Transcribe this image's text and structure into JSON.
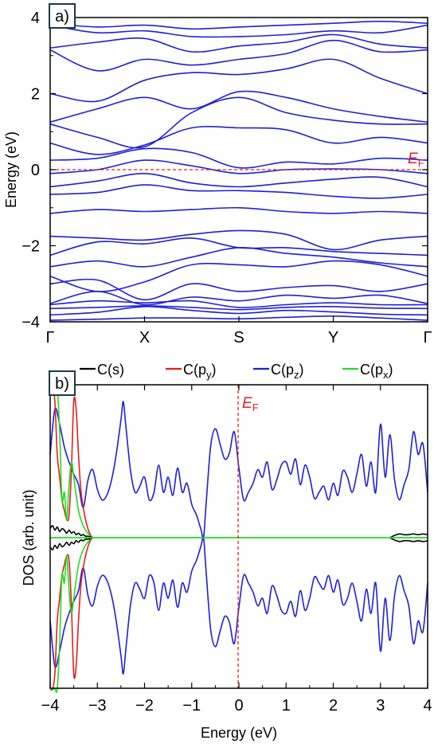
{
  "chart_data": [
    {
      "type": "line",
      "panel_tag": "a)",
      "xlabel": "",
      "ylabel": "Energy (eV)",
      "ylim": [
        -4,
        4
      ],
      "x_ticks": [
        "Γ",
        "X",
        "S",
        "Y",
        "Γ"
      ],
      "y_ticks": [
        -4,
        -2,
        0,
        2,
        4
      ],
      "fermi_line": {
        "y": 0,
        "label": "E",
        "label_sub": "F",
        "color": "#e3201b",
        "style": "dashed"
      },
      "series_color": "#1f1fd6",
      "x_positions": [
        0,
        0.5,
        1,
        1.5,
        2,
        2.5,
        3,
        3.5,
        4
      ],
      "series": [
        {
          "values": [
            -3.96,
            -3.93,
            -3.9,
            -3.9,
            -3.92,
            -3.88,
            -3.85,
            -3.9,
            -3.96
          ]
        },
        {
          "values": [
            -3.82,
            -3.75,
            -3.6,
            -3.7,
            -3.78,
            -3.7,
            -3.74,
            -3.8,
            -3.82
          ]
        },
        {
          "values": [
            -3.65,
            -3.62,
            -3.58,
            -3.62,
            -3.68,
            -3.62,
            -3.6,
            -3.64,
            -3.65
          ]
        },
        {
          "values": [
            -3.55,
            -3.45,
            -3.5,
            -3.45,
            -3.62,
            -3.55,
            -3.5,
            -3.55,
            -3.55
          ]
        },
        {
          "values": [
            -3.52,
            -3.2,
            -3.55,
            -3.35,
            -3.45,
            -3.3,
            -3.38,
            -3.3,
            -3.52
          ]
        },
        {
          "values": [
            -3.0,
            -2.9,
            -3.42,
            -3.0,
            -3.2,
            -3.1,
            -3.05,
            -3.2,
            -3.0
          ]
        },
        {
          "values": [
            -2.8,
            -3.2,
            -2.95,
            -2.5,
            -2.5,
            -2.55,
            -2.4,
            -2.5,
            -2.8
          ]
        },
        {
          "values": [
            -2.55,
            -2.4,
            -2.55,
            -2.3,
            -2.05,
            -2.2,
            -2.3,
            -2.45,
            -2.55
          ]
        },
        {
          "values": [
            -2.25,
            -1.9,
            -1.95,
            -1.8,
            -2.05,
            -2.05,
            -2.15,
            -2.2,
            -2.25
          ]
        },
        {
          "values": [
            -1.75,
            -1.8,
            -1.85,
            -1.7,
            -1.6,
            -1.7,
            -2.1,
            -1.85,
            -1.75
          ]
        },
        {
          "values": [
            -1.15,
            -1.05,
            -1.1,
            -1.05,
            -1.0,
            -1.1,
            -1.15,
            -1.1,
            -1.15
          ]
        },
        {
          "values": [
            -0.65,
            -0.6,
            -0.4,
            -0.55,
            -0.55,
            -0.6,
            -0.7,
            -0.75,
            -0.65
          ]
        },
        {
          "values": [
            -0.45,
            -0.3,
            -0.1,
            -0.35,
            -0.45,
            -0.35,
            -0.25,
            -0.2,
            -0.45
          ]
        },
        {
          "values": [
            -0.1,
            0.0,
            0.25,
            0.1,
            -0.1,
            0.0,
            0.02,
            0.0,
            -0.1
          ]
        },
        {
          "values": [
            0.25,
            0.3,
            0.55,
            0.45,
            0.05,
            0.2,
            0.15,
            0.3,
            0.25
          ]
        },
        {
          "values": [
            0.7,
            0.4,
            0.65,
            1.1,
            1.1,
            1.05,
            0.7,
            0.85,
            0.7
          ]
        },
        {
          "values": [
            1.2,
            0.85,
            0.6,
            1.5,
            1.9,
            1.5,
            1.3,
            1.2,
            1.2
          ]
        },
        {
          "values": [
            1.25,
            1.6,
            1.9,
            1.6,
            2.05,
            1.9,
            1.6,
            1.4,
            1.25
          ]
        },
        {
          "values": [
            2.0,
            1.8,
            2.35,
            2.55,
            2.5,
            2.65,
            2.9,
            2.4,
            2.0
          ]
        },
        {
          "values": [
            3.15,
            2.6,
            2.9,
            2.75,
            2.9,
            3.05,
            3.4,
            3.1,
            3.15
          ]
        },
        {
          "values": [
            3.2,
            3.35,
            3.45,
            3.1,
            3.25,
            3.35,
            3.55,
            3.3,
            3.2
          ]
        },
        {
          "values": [
            3.8,
            3.6,
            3.65,
            3.5,
            3.5,
            3.55,
            3.65,
            3.6,
            3.8
          ]
        },
        {
          "values": [
            3.85,
            3.75,
            3.8,
            3.7,
            3.75,
            3.8,
            3.85,
            3.9,
            3.85
          ]
        }
      ]
    },
    {
      "type": "line",
      "panel_tag": "b)",
      "xlabel": "Energy (eV)",
      "ylabel": "DOS (arb. unit)",
      "xlim": [
        -4,
        4
      ],
      "x_ticks": [
        -4,
        -3,
        -2,
        -1,
        0,
        1,
        2,
        3,
        4
      ],
      "fermi_line": {
        "x": 0,
        "label": "E",
        "label_sub": "F",
        "color": "#e3201b",
        "style": "dashed"
      },
      "legend": {
        "placement": "top",
        "entries": [
          {
            "label": "C(s)",
            "base": "C(s",
            "sub": "",
            "close": ")",
            "color": "#000000"
          },
          {
            "label": "C(py)",
            "base": "C(p",
            "sub": "y",
            "close": ")",
            "color": "#e3201b"
          },
          {
            "label": "C(pz)",
            "base": "C(p",
            "sub": "z",
            "close": ")",
            "color": "#1f1fd6"
          },
          {
            "label": "C(px)",
            "base": "C(p",
            "sub": "x",
            "close": ")",
            "color": "#22dd22"
          }
        ]
      },
      "series": [
        {
          "name": "C(pz)",
          "color": "#1f1fd6",
          "x": [
            -4,
            -3.9,
            -3.8,
            -3.7,
            -3.6,
            -3.5,
            -3.4,
            -3.3,
            -3.2,
            -3.1,
            -3.0,
            -2.9,
            -2.8,
            -2.7,
            -2.6,
            -2.5,
            -2.45,
            -2.4,
            -2.3,
            -2.2,
            -2.1,
            -2.0,
            -1.9,
            -1.8,
            -1.7,
            -1.6,
            -1.5,
            -1.4,
            -1.3,
            -1.2,
            -1.1,
            -1.0,
            -0.9,
            -0.8,
            -0.75,
            -0.7,
            -0.6,
            -0.5,
            -0.4,
            -0.3,
            -0.2,
            -0.1,
            0.0,
            0.1,
            0.2,
            0.3,
            0.4,
            0.5,
            0.6,
            0.7,
            0.8,
            0.9,
            1.0,
            1.1,
            1.2,
            1.3,
            1.4,
            1.5,
            1.6,
            1.7,
            1.8,
            1.9,
            2.0,
            2.1,
            2.2,
            2.3,
            2.4,
            2.5,
            2.6,
            2.7,
            2.8,
            2.9,
            3.0,
            3.1,
            3.2,
            3.3,
            3.4,
            3.5,
            3.6,
            3.7,
            3.8,
            3.9,
            4.0
          ],
          "values": [
            0.55,
            0.85,
            0.75,
            0.6,
            0.5,
            0.42,
            0.35,
            0.2,
            0.38,
            0.45,
            0.32,
            0.25,
            0.28,
            0.38,
            0.55,
            0.78,
            0.9,
            0.75,
            0.45,
            0.3,
            0.34,
            0.4,
            0.25,
            0.3,
            0.48,
            0.3,
            0.4,
            0.28,
            0.46,
            0.3,
            0.36,
            0.22,
            0.15,
            0.05,
            0.0,
            0.2,
            0.6,
            0.72,
            0.62,
            0.52,
            0.56,
            0.7,
            0.46,
            0.25,
            0.3,
            0.36,
            0.45,
            0.4,
            0.5,
            0.32,
            0.38,
            0.48,
            0.5,
            0.42,
            0.52,
            0.35,
            0.48,
            0.4,
            0.26,
            0.3,
            0.34,
            0.25,
            0.36,
            0.28,
            0.44,
            0.4,
            0.3,
            0.42,
            0.55,
            0.34,
            0.5,
            0.3,
            0.75,
            0.4,
            0.68,
            0.38,
            0.25,
            0.35,
            0.45,
            0.7,
            0.55,
            0.62,
            0.3
          ]
        },
        {
          "name": "C(py)",
          "color": "#e3201b",
          "x": [
            -4,
            -3.95,
            -3.9,
            -3.85,
            -3.8,
            -3.75,
            -3.7,
            -3.65,
            -3.6,
            -3.55,
            -3.5,
            -3.45,
            -3.4,
            -3.35,
            -3.3,
            -3.25,
            -3.2,
            -3.15,
            -3.1
          ],
          "values": [
            1.2,
            1.1,
            0.9,
            0.55,
            0.4,
            0.25,
            0.18,
            0.12,
            0.15,
            0.45,
            0.9,
            0.85,
            0.55,
            0.32,
            0.2,
            0.12,
            0.06,
            0.02,
            0.0
          ]
        },
        {
          "name": "C(px)",
          "color": "#22dd22",
          "x": [
            -4,
            -3.95,
            -3.9,
            -3.85,
            -3.8,
            -3.75,
            -3.7,
            -3.65,
            -3.6,
            -3.55,
            -3.5,
            -3.45,
            -3.4,
            -3.35,
            -3.3,
            -3.25,
            -3.2,
            -3.15,
            -3.1
          ],
          "values": [
            1.3,
            1.2,
            1.05,
            1.25,
            0.7,
            0.25,
            0.3,
            0.12,
            0.35,
            0.5,
            0.4,
            0.28,
            0.18,
            0.12,
            0.08,
            0.05,
            0.03,
            0.01,
            0.0
          ]
        },
        {
          "name": "C(s)",
          "color": "#000000",
          "x": [
            -4,
            -3.95,
            -3.9,
            -3.85,
            -3.8,
            -3.75,
            -3.7,
            -3.65,
            -3.6,
            -3.55,
            -3.5,
            -3.45,
            -3.4,
            -3.35,
            -3.3,
            -3.25,
            -3.2,
            -3.15,
            -3.1,
            3.2,
            3.3,
            3.4,
            3.5,
            3.6,
            3.7,
            3.8,
            3.9,
            4.0
          ],
          "values": [
            0.06,
            0.08,
            0.05,
            0.07,
            0.04,
            0.06,
            0.05,
            0.03,
            0.05,
            0.03,
            0.04,
            0.02,
            0.03,
            0.015,
            0.02,
            0.01,
            0.01,
            0.005,
            0.0,
            0.0,
            0.015,
            0.025,
            0.02,
            0.02,
            0.025,
            0.02,
            0.025,
            0.02
          ]
        }
      ]
    }
  ]
}
